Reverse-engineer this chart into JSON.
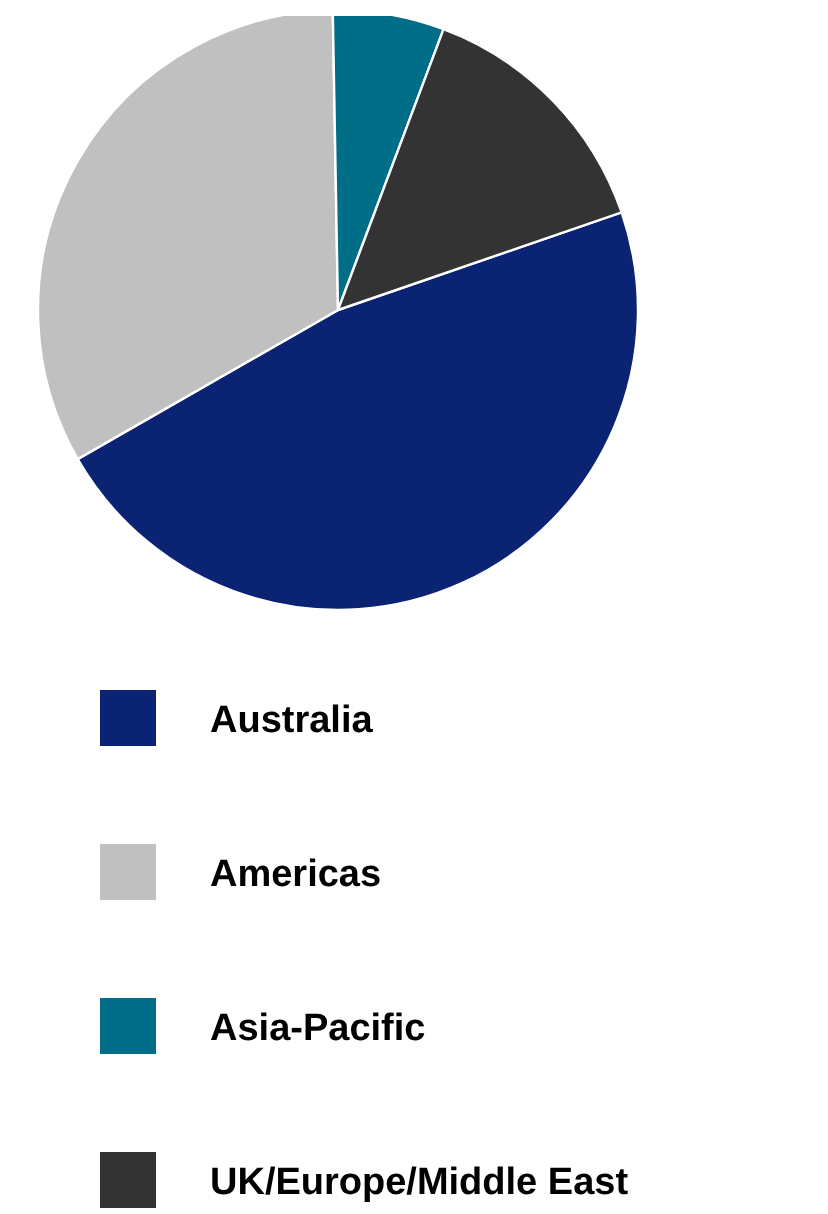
{
  "chart_data": {
    "type": "pie",
    "categories": [
      "Australia",
      "Americas",
      "Asia-Pacific",
      "UK/Europe/Middle East"
    ],
    "values": [
      47,
      33,
      6,
      14
    ],
    "colors": [
      "#0a2373",
      "#c0c0c0",
      "#006e87",
      "#333333"
    ],
    "legend": "bottom"
  }
}
